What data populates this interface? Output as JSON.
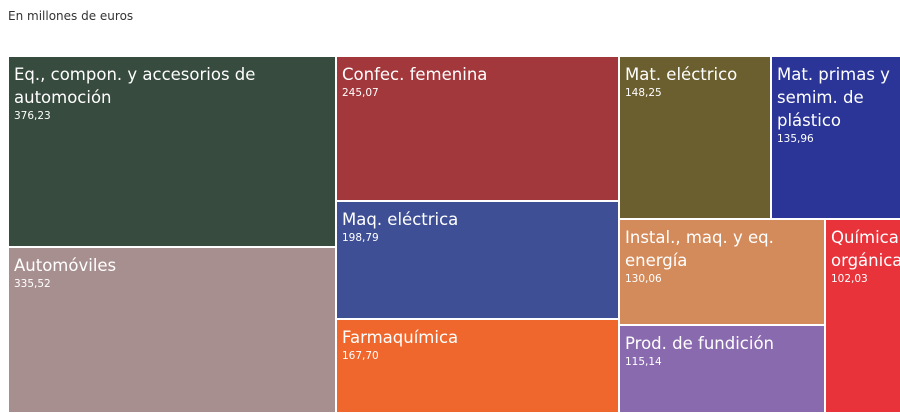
{
  "chart_data": {
    "type": "treemap",
    "title": "En millones de euros",
    "categories": [
      "Eq., compon. y accesorios de automoción",
      "Automóviles",
      "Confec. femenina",
      "Maq. eléctrica",
      "Farmaquímica",
      "Mat. eléctrico",
      "Mat. primas y semim. de plástico",
      "Instal., maq. y eq. energía",
      "Química orgánica",
      "Prod. de fundición"
    ],
    "values": [
      376.23,
      335.52,
      245.07,
      198.79,
      167.7,
      148.25,
      135.96,
      130.06,
      102.03,
      115.14
    ],
    "value_labels": [
      "376,23",
      "335,52",
      "245,07",
      "198,79",
      "167,70",
      "148,25",
      "135,96",
      "130,06",
      "102,03",
      "115,14"
    ],
    "colors": [
      "#374b3f",
      "#a88f8f",
      "#a3383c",
      "#3f4f96",
      "#ef672c",
      "#6b5e2f",
      "#2b3597",
      "#d38b5b",
      "#e8333b",
      "#8a6aae"
    ]
  }
}
